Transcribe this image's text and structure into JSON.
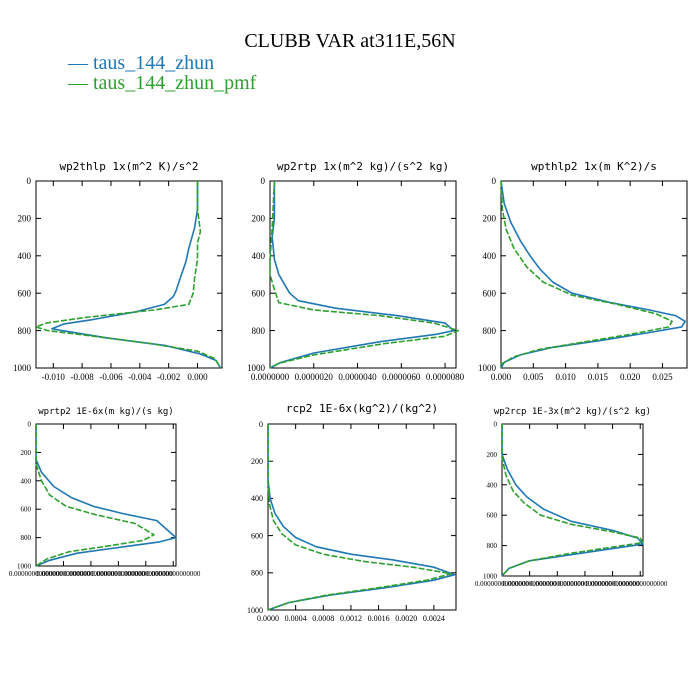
{
  "figure": {
    "title": "CLUBB VAR at311E,56N",
    "legend": [
      {
        "name": "taus_144_zhun",
        "color": "#1f77b4"
      },
      {
        "name": "taus_144_zhun_pmf",
        "color": "#2ca02c"
      }
    ]
  },
  "chart_data": [
    {
      "type": "line",
      "title": "wp2thlp  1x(m^2 K)/s^2",
      "xlim": [
        -0.0112,
        0.0017
      ],
      "ylim": [
        1000,
        0
      ],
      "xticks": [
        -0.01,
        -0.008,
        -0.006,
        -0.004,
        -0.002,
        0.0
      ],
      "xticklabels": [
        "-0.010",
        "-0.008",
        "-0.006",
        "-0.004",
        "-0.002",
        "0.000"
      ],
      "yticks": [
        0,
        200,
        400,
        600,
        800,
        1000
      ],
      "series": [
        {
          "name": "taus_144_zhun",
          "color": "#1f77b4",
          "x": [
            0.0,
            0.0,
            -0.0002,
            -0.0006,
            -0.0008,
            -0.0012,
            -0.0015,
            -0.0017,
            -0.0023,
            -0.0043,
            -0.0072,
            -0.0093,
            -0.0101,
            -0.0094,
            -0.0062,
            -0.0022,
            0.0002,
            0.0013,
            0.0016
          ],
          "y": [
            0,
            150,
            250,
            360,
            430,
            520,
            590,
            620,
            660,
            700,
            740,
            765,
            790,
            800,
            840,
            880,
            925,
            960,
            1000
          ]
        },
        {
          "name": "taus_144_zhun_pmf",
          "color": "#2ca02c",
          "x": [
            0.0,
            0.0,
            0.0002,
            0.0,
            0.0,
            -0.0002,
            -0.0003,
            -0.0006,
            -0.003,
            -0.0078,
            -0.0105,
            -0.0112,
            -0.0104,
            -0.0072,
            -0.0032,
            0.0,
            0.0012,
            0.0016
          ],
          "y": [
            0,
            150,
            270,
            330,
            420,
            520,
            600,
            660,
            690,
            730,
            760,
            780,
            800,
            830,
            870,
            910,
            950,
            1000
          ]
        }
      ]
    },
    {
      "type": "line",
      "title": "wp2rtp  1x(m^2 kg)/(s^2 kg)",
      "xlim": [
        0.0,
        8.5e-06
      ],
      "ylim": [
        1000,
        0
      ],
      "xticks": [
        0.0,
        2e-06,
        4e-06,
        6e-06,
        8e-06
      ],
      "xticklabels": [
        "0.0000000",
        "0.0000020",
        "0.0000040",
        "0.0000060",
        "0.0000080"
      ],
      "yticks": [
        0,
        200,
        400,
        600,
        800,
        1000
      ],
      "series": [
        {
          "name": "taus_144_zhun",
          "color": "#1f77b4",
          "x": [
            2e-07,
            2e-07,
            1e-07,
            2e-07,
            4e-07,
            7e-07,
            9e-07,
            1.3e-06,
            3e-06,
            5.8e-06,
            8e-06,
            8.4e-06,
            7.6e-06,
            5e-06,
            2e-06,
            5e-07,
            0.0
          ],
          "y": [
            0,
            200,
            300,
            420,
            500,
            560,
            600,
            640,
            680,
            720,
            760,
            800,
            820,
            860,
            920,
            970,
            1000
          ]
        },
        {
          "name": "taus_144_zhun_pmf",
          "color": "#2ca02c",
          "x": [
            2e-07,
            1e-07,
            0.0,
            0.0,
            2e-07,
            4e-07,
            2e-06,
            5e-06,
            7.5e-06,
            8.6e-06,
            8e-06,
            5.2e-06,
            2e-06,
            4e-07,
            0.0
          ],
          "y": [
            0,
            250,
            420,
            500,
            580,
            650,
            690,
            720,
            760,
            800,
            830,
            870,
            930,
            975,
            1000
          ]
        }
      ]
    },
    {
      "type": "line",
      "title": "wpthlp2  1x(m K^2)/s",
      "xlim": [
        0.0,
        0.0288
      ],
      "ylim": [
        1000,
        0
      ],
      "xticks": [
        0.0,
        0.005,
        0.01,
        0.015,
        0.02,
        0.025
      ],
      "xticklabels": [
        "0.000",
        "0.005",
        "0.010",
        "0.015",
        "0.020",
        "0.025"
      ],
      "yticks": [
        0,
        200,
        400,
        600,
        800,
        1000
      ],
      "series": [
        {
          "name": "taus_144_zhun",
          "color": "#1f77b4",
          "x": [
            0.0,
            0.0005,
            0.0015,
            0.003,
            0.0045,
            0.006,
            0.008,
            0.011,
            0.017,
            0.023,
            0.027,
            0.0285,
            0.028,
            0.023,
            0.016,
            0.008,
            0.003,
            0.0005,
            0.0
          ],
          "y": [
            0,
            120,
            220,
            320,
            400,
            470,
            540,
            600,
            650,
            690,
            720,
            750,
            780,
            810,
            850,
            890,
            930,
            970,
            1000
          ]
        },
        {
          "name": "taus_144_zhun_pmf",
          "color": "#2ca02c",
          "x": [
            0.0,
            0.0002,
            0.0008,
            0.002,
            0.004,
            0.0065,
            0.011,
            0.018,
            0.024,
            0.0265,
            0.026,
            0.02,
            0.013,
            0.006,
            0.002,
            0.0,
            0.0
          ],
          "y": [
            0,
            150,
            260,
            360,
            460,
            540,
            610,
            660,
            710,
            750,
            780,
            820,
            860,
            900,
            940,
            980,
            1000
          ]
        }
      ]
    },
    {
      "type": "line",
      "title": "wprtp2  1E-6x(m kg)/(s kg)",
      "xlim": [
        0.0,
        1.02e-05
      ],
      "ylim": [
        1000,
        0
      ],
      "xticks": [
        0.0,
        2e-06,
        4e-06,
        6e-06,
        8e-06,
        1e-05
      ],
      "xticklabels": [
        "0.00000000000000",
        "0.00000000000000",
        "0.00000000000000",
        "0.00000000000000",
        "0.00000000000000",
        "0.00000000000000"
      ],
      "yticks": [
        0,
        200,
        400,
        600,
        800,
        1000
      ],
      "series": [
        {
          "name": "taus_144_zhun",
          "color": "#1f77b4",
          "x": [
            0.0,
            0.0,
            4e-07,
            1.3e-06,
            2.6e-06,
            4.2e-06,
            6.3e-06,
            8.8e-06,
            1.02e-05,
            9e-06,
            6e-06,
            3e-06,
            1e-06,
            0.0
          ],
          "y": [
            0,
            250,
            340,
            440,
            520,
            580,
            630,
            680,
            800,
            830,
            870,
            910,
            960,
            1000
          ]
        },
        {
          "name": "taus_144_zhun_pmf",
          "color": "#2ca02c",
          "x": [
            0.0,
            0.0,
            4e-07,
            1e-06,
            2.2e-06,
            4.4e-06,
            7.2e-06,
            8.6e-06,
            7.8e-06,
            5.2e-06,
            2.4e-06,
            8e-07,
            0.0
          ],
          "y": [
            0,
            280,
            400,
            500,
            580,
            640,
            700,
            780,
            820,
            860,
            900,
            950,
            1000
          ]
        }
      ]
    },
    {
      "type": "line",
      "title": "rcp2  1E-6x(kg^2)/(kg^2)",
      "xlim": [
        0.0,
        0.00272
      ],
      "ylim": [
        1000,
        0
      ],
      "xticks": [
        0.0,
        0.0004,
        0.0008,
        0.0012,
        0.0016,
        0.002,
        0.0024
      ],
      "xticklabels": [
        "0.0000",
        "0.0004",
        "0.0008",
        "0.0012",
        "0.0016",
        "0.0020",
        "0.0024"
      ],
      "yticks": [
        0,
        200,
        400,
        600,
        800,
        1000
      ],
      "series": [
        {
          "name": "taus_144_zhun",
          "color": "#1f77b4",
          "x": [
            0.0,
            0.0,
            3e-05,
            0.0001,
            0.00022,
            0.0004,
            0.0007,
            0.0012,
            0.0018,
            0.0024,
            0.0027,
            0.0024,
            0.0017,
            0.0009,
            0.0003,
            0.0
          ],
          "y": [
            0,
            300,
            400,
            480,
            550,
            610,
            660,
            700,
            730,
            770,
            810,
            840,
            880,
            920,
            960,
            1000
          ]
        },
        {
          "name": "taus_144_zhun_pmf",
          "color": "#2ca02c",
          "x": [
            0.0,
            0.0,
            2e-05,
            8e-05,
            0.0002,
            0.0004,
            0.0008,
            0.0014,
            0.0021,
            0.00265,
            0.0023,
            0.0016,
            0.00085,
            0.0003,
            0.0
          ],
          "y": [
            0,
            320,
            430,
            520,
            590,
            650,
            700,
            740,
            770,
            805,
            840,
            880,
            920,
            960,
            1000
          ]
        }
      ]
    },
    {
      "type": "line",
      "title": "wp2rcp  1E-3x(m^2 kg)/(s^2 kg)",
      "xlim": [
        0.0,
        0.00102
      ],
      "ylim": [
        1000,
        0
      ],
      "xticks": [
        0.0,
        0.0002,
        0.0004,
        0.0006,
        0.0008,
        0.001
      ],
      "xticklabels": [
        "0.00000000000000",
        "0.00000000000000",
        "0.00000000000000",
        "0.00000000000000",
        "0.00000000000000",
        "0.00000000000000"
      ],
      "yticks": [
        0,
        200,
        400,
        600,
        800,
        1000
      ],
      "series": [
        {
          "name": "taus_144_zhun",
          "color": "#1f77b4",
          "x": [
            0.0,
            0.0,
            4e-05,
            0.0001,
            0.00018,
            0.0003,
            0.0005,
            0.0008,
            0.00098,
            0.00102,
            0.0008,
            0.0005,
            0.0002,
            5e-05,
            0.0
          ],
          "y": [
            0,
            200,
            300,
            400,
            480,
            560,
            640,
            700,
            750,
            790,
            820,
            860,
            900,
            950,
            1000
          ]
        },
        {
          "name": "taus_144_zhun_pmf",
          "color": "#2ca02c",
          "x": [
            0.0,
            0.0,
            3e-05,
            8e-05,
            0.00016,
            0.00028,
            0.0005,
            0.0008,
            0.001,
            0.00102,
            0.0008,
            0.0005,
            0.0002,
            5e-05,
            0.0
          ],
          "y": [
            0,
            220,
            340,
            440,
            520,
            600,
            660,
            710,
            750,
            780,
            810,
            850,
            900,
            950,
            1000
          ]
        }
      ]
    }
  ]
}
